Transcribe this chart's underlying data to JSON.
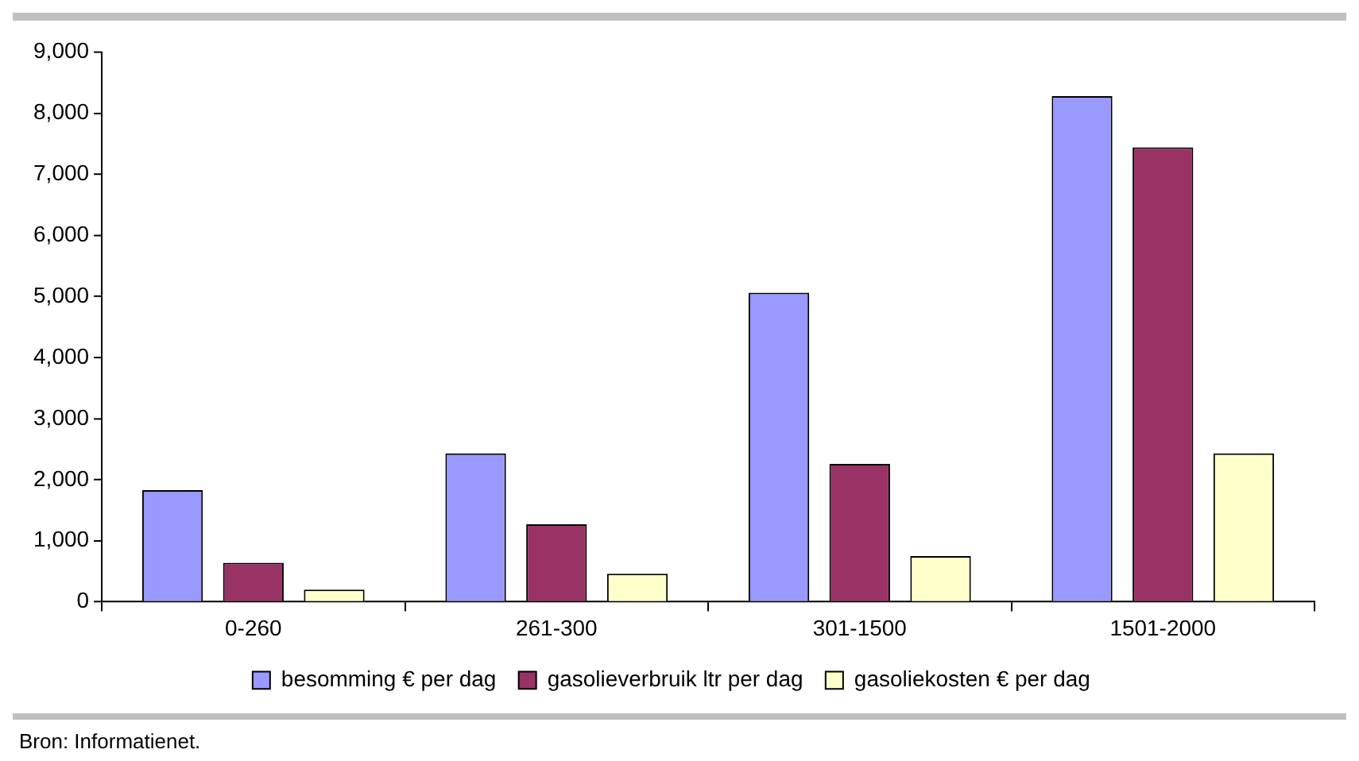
{
  "chart_data": {
    "type": "bar",
    "categories": [
      "0-260",
      "261-300",
      "301-1500",
      "1501-2000"
    ],
    "series": [
      {
        "name": "besomming € per dag",
        "color": "#9999ff",
        "values": [
          1830,
          2430,
          5060,
          8280
        ]
      },
      {
        "name": "gasolieverbruik ltr per dag",
        "color": "#993366",
        "values": [
          640,
          1270,
          2260,
          7440
        ]
      },
      {
        "name": "gasoliekosten € per dag",
        "color": "#ffffcc",
        "values": [
          200,
          460,
          750,
          2430
        ]
      }
    ],
    "ylim": [
      0,
      9000
    ],
    "yticks": [
      {
        "value": 0,
        "label": "0"
      },
      {
        "value": 1000,
        "label": "1,000"
      },
      {
        "value": 2000,
        "label": "2,000"
      },
      {
        "value": 3000,
        "label": "3,000"
      },
      {
        "value": 4000,
        "label": "4,000"
      },
      {
        "value": 5000,
        "label": "5,000"
      },
      {
        "value": 6000,
        "label": "6,000"
      },
      {
        "value": 7000,
        "label": "7,000"
      },
      {
        "value": 8000,
        "label": "8,000"
      },
      {
        "value": 9000,
        "label": "9,000"
      }
    ],
    "grid": false,
    "legend": "bottom",
    "annotations": [
      "Bron: Informatienet."
    ]
  }
}
